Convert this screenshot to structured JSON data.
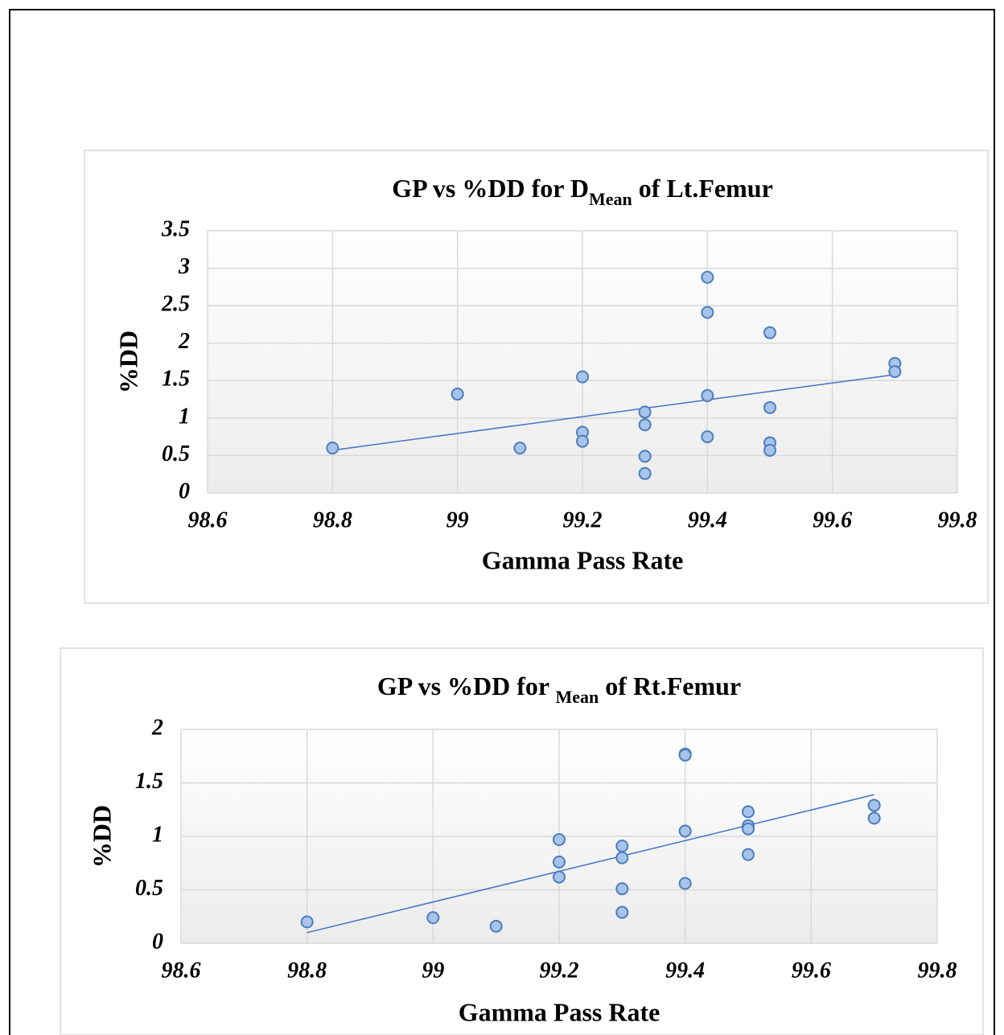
{
  "chart_data": [
    {
      "type": "scatter",
      "title": "GP vs %DD for D",
      "title_subscript": "Mean",
      "title_suffix": " of Lt.Femur",
      "x_label": "Gamma Pass Rate",
      "y_label": "%DD",
      "x": [
        98.8,
        99,
        99.1,
        99.2,
        99.2,
        99.2,
        99.3,
        99.3,
        99.3,
        99.3,
        99.4,
        99.4,
        99.4,
        99.4,
        99.5,
        99.5,
        99.5,
        99.5,
        99.7,
        99.7
      ],
      "values": [
        0.6,
        1.32,
        0.6,
        1.55,
        0.81,
        0.69,
        1.08,
        0.91,
        0.49,
        0.26,
        2.88,
        2.41,
        1.3,
        0.75,
        2.14,
        1.14,
        0.67,
        0.57,
        1.73,
        1.62
      ],
      "trendline": {
        "x": [
          98.8,
          99.7
        ],
        "values": [
          0.57,
          1.58
        ]
      },
      "xlim": [
        98.6,
        99.8
      ],
      "xticks": [
        98.6,
        98.8,
        99,
        99.2,
        99.4,
        99.6,
        99.8
      ],
      "ylim": [
        0,
        3.5
      ],
      "yticks": [
        0,
        0.5,
        1,
        1.5,
        2,
        2.5,
        3,
        3.5
      ],
      "grid": true,
      "color": "#a9c4eb",
      "edge_color": "#4a7ebb",
      "trendline_color": "#4472c4"
    },
    {
      "type": "scatter",
      "title": "GP vs %DD for ",
      "title_subscript": "Mean",
      "title_suffix": " of Rt.Femur",
      "x_label": "Gamma Pass Rate",
      "y_label": "%DD",
      "x": [
        98.8,
        99,
        99.1,
        99.2,
        99.2,
        99.2,
        99.3,
        99.3,
        99.3,
        99.3,
        99.4,
        99.4,
        99.4,
        99.4,
        99.5,
        99.5,
        99.5,
        99.5,
        99.7,
        99.7
      ],
      "values": [
        0.2,
        0.24,
        0.16,
        0.97,
        0.76,
        0.62,
        0.91,
        0.8,
        0.51,
        0.29,
        1.77,
        1.76,
        1.05,
        0.56,
        1.23,
        1.1,
        1.07,
        0.83,
        1.29,
        1.17
      ],
      "trendline": {
        "x": [
          98.8,
          99.7
        ],
        "values": [
          0.1,
          1.39
        ]
      },
      "xlim": [
        98.6,
        99.8
      ],
      "xticks": [
        98.6,
        98.8,
        99,
        99.2,
        99.4,
        99.6,
        99.8
      ],
      "ylim": [
        0,
        2
      ],
      "yticks": [
        0,
        0.5,
        1,
        1.5,
        2
      ],
      "grid": true,
      "color": "#a9c4eb",
      "edge_color": "#4a7ebb",
      "trendline_color": "#4472c4"
    }
  ]
}
